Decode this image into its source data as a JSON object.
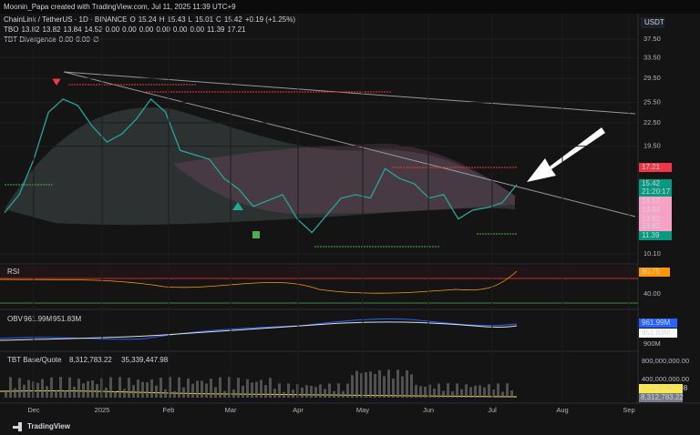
{
  "header": {
    "credit": "Moonin_Papa created with TradingView.com, Jul 11, 2025 11:39 UTC+9"
  },
  "legend": {
    "symbol": "ChainLink / TetherUS · 1D · BINANCE",
    "ohlc": [
      [
        "O",
        "15.24"
      ],
      [
        "H",
        "15.43"
      ],
      [
        "L",
        "15.01"
      ],
      [
        "C",
        "15.42"
      ]
    ],
    "change": "+0.19 (+1.25%)"
  },
  "tbo": {
    "name": "TBO",
    "values": [
      "13.82",
      "13.82",
      "13.84",
      "14.52",
      "0.00",
      "0.00",
      "0.00",
      "0.00",
      "0.00",
      "0.00",
      "11.39",
      "17.21"
    ],
    "colors": [
      "#f7525f",
      "#f7525f",
      "#f7525f",
      "#f7525f",
      "#22ab94",
      "#ff9800",
      "#22ab94",
      "#ffffff",
      "#ffeb3b",
      "#f7525f",
      "#22ab94",
      "#f7525f"
    ]
  },
  "tbt": {
    "name": "TBT Divergence",
    "values": [
      "0.00",
      "0.00",
      "∅"
    ]
  },
  "price_axis": {
    "currency": "USDT",
    "ticks": [
      {
        "value": 37.5,
        "label": "37.50"
      },
      {
        "value": 33.5,
        "label": "33.50"
      },
      {
        "value": 29.5,
        "label": "29.50"
      },
      {
        "value": 25.5,
        "label": "25.50"
      },
      {
        "value": 22.5,
        "label": "22.50"
      },
      {
        "value": 19.5,
        "label": "19.50"
      },
      {
        "value": 10.1,
        "label": "10.10"
      }
    ],
    "lim": [
      10.1,
      37.5
    ]
  },
  "price_tags": [
    {
      "label": "17.21",
      "color": "#f23645"
    },
    {
      "label": "15.42",
      "color": "#089981",
      "sub": "21:20:17"
    },
    {
      "label": "14.52",
      "color": "#f7a1c4"
    },
    {
      "label": "13.84",
      "color": "#f7a1c4"
    },
    {
      "label": "13.82",
      "color": "#f7a1c4"
    },
    {
      "label": "13.82",
      "color": "#f7a1c4"
    },
    {
      "label": "11.39",
      "color": "#089981"
    }
  ],
  "closes": [
    13,
    14.5,
    18,
    24,
    26,
    25,
    22,
    20,
    21,
    23,
    26,
    24,
    19,
    18.5,
    18,
    16,
    15,
    13.5,
    14,
    14.5,
    12.5,
    11.5,
    12.8,
    14.2,
    14.5,
    14.2,
    17,
    16,
    15.5,
    14.2,
    14.5,
    12.5,
    13.2,
    13.4,
    13.8,
    15.42
  ],
  "time_axis": [
    "Dec",
    "2025",
    "Feb",
    "Mar",
    "Apr",
    "May",
    "Jun",
    "Jul",
    "Aug",
    "Sep"
  ],
  "rsi": {
    "label": "RSI",
    "value": "80.75",
    "level": "40.00"
  },
  "obv": {
    "label": "OBV",
    "values": [
      "961.99M",
      "951.83M"
    ],
    "tick": "900M"
  },
  "volume": {
    "label": "TBT Base/Quote",
    "values": [
      "8,312,783.22",
      "35,339,447.98"
    ],
    "ticks": [
      "800,000,000.00",
      "400,000,000.00"
    ]
  },
  "footer": {
    "brand": "TradingView"
  }
}
